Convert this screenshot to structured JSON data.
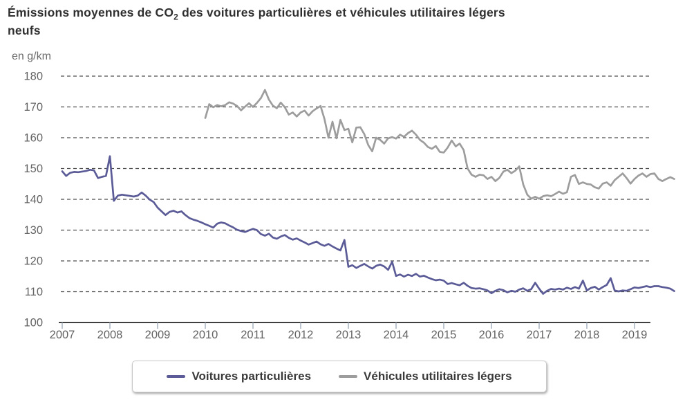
{
  "title": {
    "pre": "Émissions moyennes de CO",
    "sub": "2",
    "post": " des voitures particulières et véhicules utilitaires légers",
    "line2": "neufs"
  },
  "unit_label": "en g/km",
  "legend": {
    "items": [
      {
        "label": "Voitures particulières",
        "color": "#5b5b97"
      },
      {
        "label": "Véhicules utilitaires légers",
        "color": "#9d9d9d"
      }
    ]
  },
  "chart_data": {
    "type": "line",
    "title": "Émissions moyennes de CO₂ des voitures particulières et véhicules utilitaires légers neufs",
    "xlabel": "",
    "ylabel": "en g/km",
    "ylim": [
      100,
      180
    ],
    "y_ticks": [
      100,
      110,
      120,
      130,
      140,
      150,
      160,
      170,
      180
    ],
    "x_ticks": [
      2007,
      2008,
      2009,
      2010,
      2011,
      2012,
      2013,
      2014,
      2015,
      2016,
      2017,
      2018,
      2019
    ],
    "xlim": [
      2007,
      2019.95
    ],
    "grid": "horizontal-dashed",
    "legend_position": "bottom",
    "frequency": "monthly",
    "series": [
      {
        "name": "Voitures particulières",
        "color": "#5b5b97",
        "start": 2007.0,
        "values": [
          149.1,
          147.6,
          148.6,
          148.9,
          148.8,
          149.0,
          149.2,
          149.6,
          149.4,
          146.9,
          147.3,
          147.6,
          154.0,
          139.5,
          141.2,
          141.5,
          141.3,
          141.1,
          140.9,
          141.2,
          142.2,
          141.2,
          139.9,
          139.1,
          137.3,
          136.1,
          134.9,
          135.9,
          136.3,
          135.7,
          136.1,
          134.9,
          133.9,
          133.4,
          133.0,
          132.5,
          131.9,
          131.4,
          130.8,
          132.1,
          132.5,
          132.2,
          131.5,
          130.9,
          130.1,
          129.7,
          129.4,
          129.9,
          130.4,
          130.0,
          128.7,
          128.2,
          128.8,
          127.6,
          127.2,
          127.9,
          128.4,
          127.5,
          126.9,
          127.3,
          126.6,
          126.0,
          125.3,
          125.8,
          126.3,
          125.4,
          124.9,
          125.5,
          124.7,
          124.0,
          123.4,
          126.8,
          118.1,
          118.6,
          117.7,
          118.4,
          119.0,
          118.2,
          117.5,
          118.4,
          118.8,
          118.2,
          117.1,
          119.7,
          115.1,
          115.6,
          114.9,
          115.5,
          115.1,
          115.8,
          114.9,
          115.2,
          114.6,
          114.1,
          113.7,
          113.9,
          113.6,
          112.5,
          112.8,
          112.4,
          112.1,
          112.9,
          111.9,
          111.2,
          111.0,
          111.1,
          110.8,
          110.4,
          109.5,
          110.3,
          110.8,
          110.5,
          109.8,
          110.3,
          110.0,
          110.7,
          111.1,
          110.3,
          110.8,
          112.9,
          111.0,
          109.3,
          110.3,
          110.9,
          110.7,
          111.0,
          110.7,
          111.3,
          110.9,
          111.5,
          111.0,
          113.6,
          110.4,
          111.2,
          111.6,
          110.7,
          111.5,
          112.2,
          114.4,
          110.4,
          110.1,
          110.4,
          110.3,
          110.8,
          111.4,
          111.2,
          111.5,
          111.8,
          111.5,
          111.8,
          111.8,
          111.5,
          111.3,
          111.0,
          110.2
        ]
      },
      {
        "name": "Véhicules utilitaires légers",
        "color": "#9d9d9d",
        "start": 2010.0,
        "values": [
          166.4,
          170.9,
          169.9,
          170.6,
          170.2,
          170.6,
          171.5,
          171.1,
          170.3,
          168.9,
          170.1,
          171.2,
          170.0,
          171.3,
          172.9,
          175.5,
          172.4,
          170.4,
          169.6,
          171.4,
          169.9,
          167.5,
          168.2,
          166.9,
          168.2,
          168.8,
          167.2,
          168.6,
          169.5,
          170.3,
          166.0,
          160.0,
          165.2,
          159.8,
          165.8,
          162.5,
          162.9,
          158.5,
          163.3,
          163.4,
          161.2,
          157.6,
          155.6,
          160.0,
          159.3,
          158.1,
          159.8,
          160.2,
          159.7,
          161.0,
          160.3,
          161.5,
          162.3,
          161.0,
          159.3,
          158.4,
          157.0,
          156.4,
          157.3,
          155.4,
          155.2,
          156.8,
          159.1,
          157.2,
          158.1,
          156.0,
          150.0,
          148.0,
          147.3,
          148.0,
          147.8,
          146.6,
          147.3,
          145.9,
          147.0,
          149.0,
          149.6,
          148.5,
          149.3,
          150.7,
          144.8,
          141.5,
          140.2,
          140.8,
          140.2,
          141.0,
          141.3,
          141.0,
          141.7,
          142.5,
          141.8,
          142.3,
          147.3,
          147.9,
          145.0,
          145.5,
          145.0,
          144.8,
          143.9,
          143.5,
          145.1,
          145.5,
          144.4,
          146.2,
          147.3,
          148.4,
          146.9,
          145.1,
          146.6,
          147.7,
          148.4,
          147.3,
          148.2,
          148.4,
          146.6,
          145.9,
          146.6,
          147.2,
          146.6
        ]
      }
    ],
    "style": {
      "grid_color": "#4d4d4d",
      "axis_color": "#3f3f3f",
      "tick_color": "#a7b3c0",
      "label_color": "#636363"
    }
  }
}
